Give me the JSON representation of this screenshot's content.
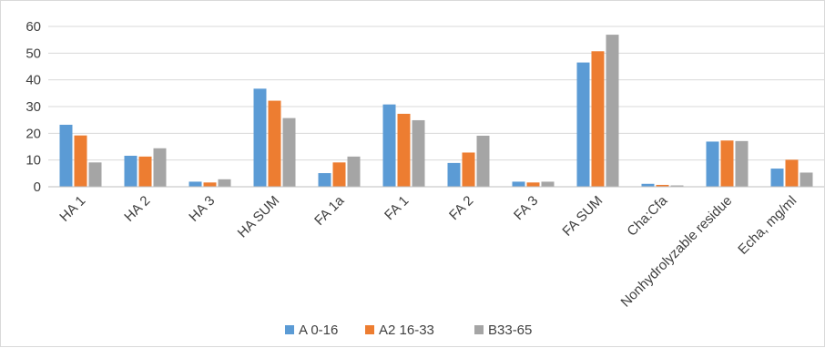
{
  "chart_data": {
    "type": "bar",
    "title": "",
    "xlabel": "",
    "ylabel": "",
    "ylim": [
      0,
      60
    ],
    "yticks": [
      0,
      10,
      20,
      30,
      40,
      50,
      60
    ],
    "grid": true,
    "legend_position": "bottom",
    "categories": [
      "HA 1",
      "HA 2",
      "HA 3",
      "HA SUM",
      "FA 1a",
      "FA 1",
      "FA 2",
      "FA 3",
      "FA SUM",
      "Cha:Cfa",
      "Nonhydrolyzable residue",
      "Echa, mg/ml"
    ],
    "series": [
      {
        "name": "A 0-16",
        "color": "#5b9bd5",
        "values": [
          23.2,
          11.6,
          1.9,
          36.7,
          5.1,
          30.8,
          8.9,
          1.9,
          46.5,
          1.1,
          16.9,
          6.8
        ]
      },
      {
        "name": "A2 16-33",
        "color": "#ed7d31",
        "values": [
          19.2,
          11.3,
          1.6,
          32.2,
          9.1,
          27.3,
          12.8,
          1.6,
          50.7,
          0.7,
          17.3,
          10.1
        ]
      },
      {
        "name": "B33-65",
        "color": "#a5a5a5",
        "values": [
          9.1,
          14.4,
          2.8,
          25.7,
          11.3,
          24.9,
          19.1,
          1.9,
          56.9,
          0.5,
          17.1,
          5.3
        ]
      }
    ]
  }
}
